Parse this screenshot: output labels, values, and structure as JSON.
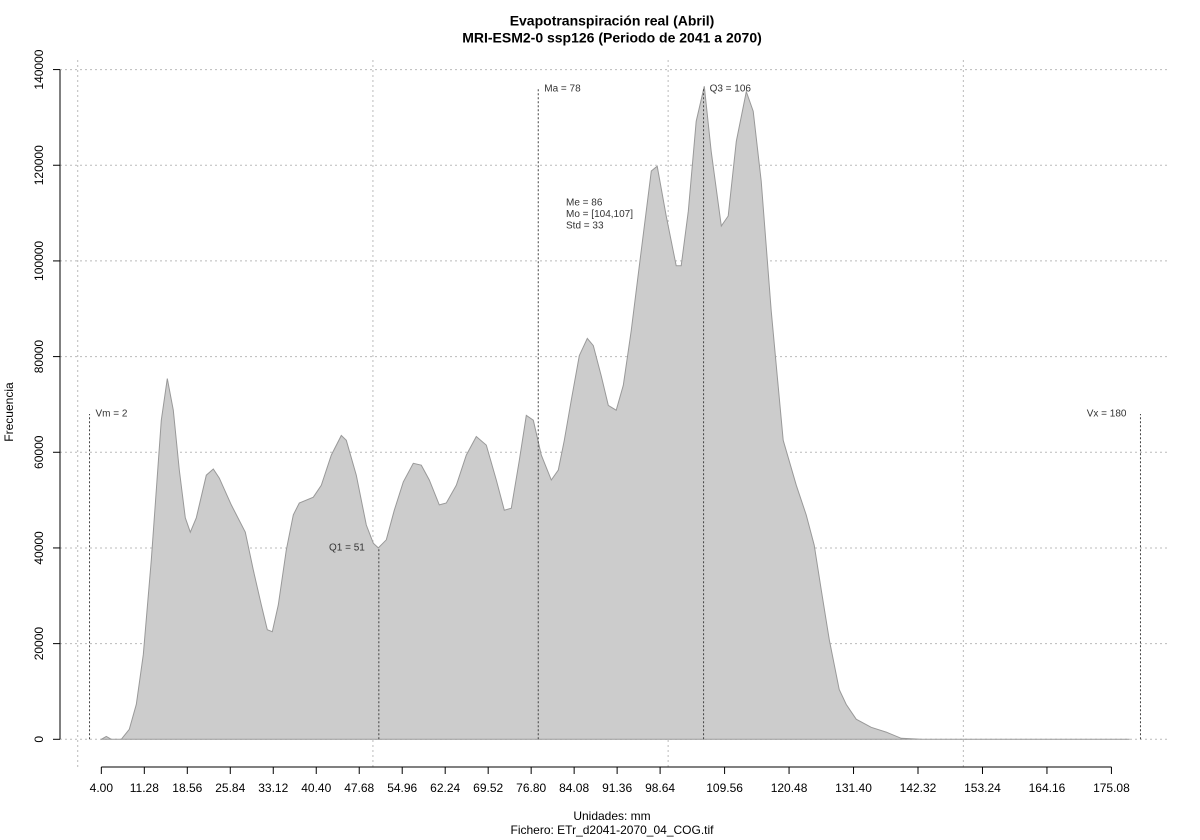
{
  "chart_data": {
    "type": "area",
    "title": "Evapotranspiración real (Abril)",
    "subtitle": "MRI-ESM2-0 ssp126 (Periodo de 2041 a 2070)",
    "x_label": "Unidades: mm",
    "file_label": "Fichero: ETr_d2041-2070_04_COG.tif",
    "y_label": "Frecuencia",
    "color": "#cccccc",
    "line_color": "#999999",
    "grid": true,
    "xlim": [
      -3,
      185
    ],
    "ylim": [
      -6000,
      142000
    ],
    "xticks": [
      {
        "value": 4,
        "label": "4.00"
      },
      11.28,
      18.56,
      25.84,
      33.12,
      {
        "value": 40.4,
        "label": "40.40"
      },
      47.68,
      54.96,
      62.24,
      69.52,
      {
        "value": 76.8,
        "label": "76.80"
      },
      84.08,
      91.36,
      98.64,
      109.56,
      120.48,
      {
        "value": 131.4,
        "label": "131.40"
      },
      142.32,
      153.24,
      164.16,
      175.08
    ],
    "yticks": [
      0,
      20000,
      40000,
      60000,
      80000,
      100000,
      120000,
      140000
    ],
    "xgrid": [
      0,
      50,
      100,
      150
    ],
    "x": [
      4.0,
      4.85,
      5.69,
      7.39,
      8.74,
      9.93,
      11.11,
      12.47,
      14.16,
      15.18,
      16.19,
      17.21,
      18.23,
      19.07,
      20.09,
      21.78,
      22.97,
      23.98,
      26.01,
      28.39,
      29.74,
      31.1,
      32.11,
      32.96,
      33.97,
      35.33,
      36.51,
      37.53,
      39.9,
      41.26,
      42.95,
      44.64,
      45.49,
      47.18,
      48.88,
      50.06,
      50.91,
      52.26,
      53.62,
      55.14,
      56.84,
      58.19,
      59.55,
      61.24,
      62.42,
      64.12,
      65.81,
      67.51,
      69.2,
      70.89,
      72.25,
      73.43,
      74.79,
      75.97,
      77.16,
      78.51,
      80.21,
      81.39,
      82.41,
      83.59,
      84.95,
      86.3,
      87.32,
      88.67,
      89.86,
      91.21,
      92.4,
      93.75,
      95.44,
      97.14,
      98.15,
      99.68,
      101.37,
      102.22,
      103.41,
      104.76,
      106.12,
      107.3,
      109.0,
      110.18,
      111.54,
      113.23,
      114.41,
      115.77,
      117.46,
      119.49,
      121.7,
      123.39,
      124.74,
      125.93,
      127.29,
      128.98,
      130.16,
      131.86,
      134.4,
      136.94,
      139.48,
      142.86,
      156.41,
      178.09
    ],
    "values": [
      0,
      600,
      0,
      0,
      2100,
      7300,
      17700,
      37500,
      66700,
      75400,
      68800,
      56300,
      46300,
      43300,
      46300,
      55200,
      56500,
      54600,
      49000,
      43300,
      35400,
      28100,
      22900,
      22500,
      28100,
      39600,
      46900,
      49400,
      50600,
      53100,
      59400,
      63500,
      62500,
      55200,
      44800,
      41000,
      40000,
      41700,
      47900,
      53800,
      57700,
      57300,
      54200,
      49000,
      49400,
      53100,
      59400,
      63300,
      61500,
      54200,
      47900,
      48300,
      58300,
      67700,
      66700,
      59400,
      54200,
      56300,
      62500,
      70800,
      80200,
      83800,
      82300,
      76000,
      69800,
      68800,
      74000,
      85400,
      102100,
      118800,
      119800,
      109400,
      99000,
      99000,
      110400,
      129200,
      136500,
      122900,
      107300,
      109400,
      125000,
      135400,
      131300,
      116700,
      89600,
      62500,
      53100,
      46900,
      40600,
      31300,
      20800,
      10400,
      7300,
      4200,
      2500,
      1500,
      200,
      0,
      0,
      0
    ],
    "markers": [
      {
        "label": "Vm = 2",
        "x": 2,
        "y": 68000
      },
      {
        "label": "Q1 = 51",
        "x": 51,
        "y": 40000
      },
      {
        "label": "Ma = 78",
        "x": 78,
        "y": 136000
      },
      {
        "label": "Q3 = 106",
        "x": 106,
        "y": 136000
      },
      {
        "label": "Vx = 180",
        "x": 180,
        "y": 68000
      }
    ],
    "stats": [
      "Me = 86",
      "Mo = [104,107]",
      "Std = 33"
    ]
  }
}
